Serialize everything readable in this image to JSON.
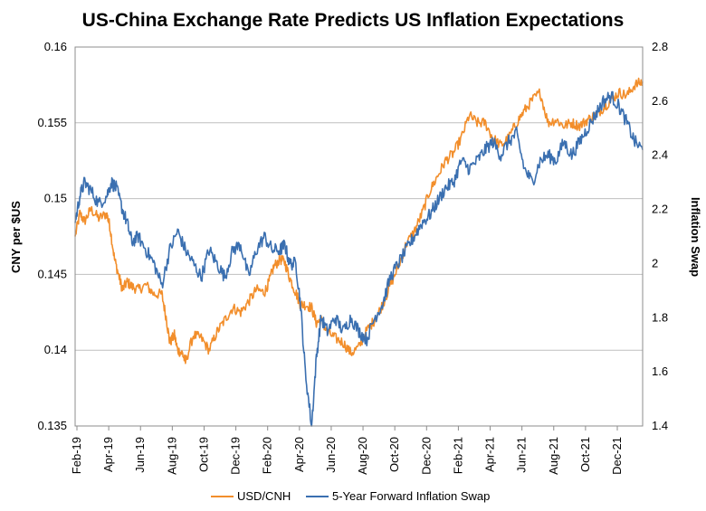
{
  "chart_data": {
    "type": "line",
    "title": "US-China Exchange Rate Predicts US Inflation Expectations",
    "ylabel": "CNY per $US",
    "y2label": "Inflation Swap",
    "ylim": [
      0.135,
      0.16
    ],
    "y2lim": [
      1.4,
      2.8
    ],
    "yticks": [
      "0.135",
      "0.14",
      "0.145",
      "0.15",
      "0.155",
      "0.16"
    ],
    "y2ticks": [
      "1.4",
      "1.6",
      "1.8",
      "2",
      "2.2",
      "2.4",
      "2.6",
      "2.8"
    ],
    "xlim": [
      0,
      36
    ],
    "grid": "horizontal",
    "categories": [
      "Feb-19",
      "Apr-19",
      "Jun-19",
      "Aug-19",
      "Oct-19",
      "Dec-19",
      "Feb-20",
      "Apr-20",
      "Jun-20",
      "Aug-20",
      "Oct-20",
      "Dec-20",
      "Feb-21",
      "Apr-21",
      "Jun-21",
      "Aug-21",
      "Oct-21",
      "Dec-21"
    ],
    "legend_position": "bottom",
    "series": [
      {
        "name": "USD/CNH",
        "axis": "left",
        "color": "#F28E2B",
        "x": [
          0,
          0.3,
          0.6,
          1.0,
          1.5,
          2.0,
          2.2,
          2.5,
          2.8,
          3.0,
          3.3,
          3.6,
          4.0,
          4.5,
          5.0,
          5.5,
          5.8,
          6.0,
          6.3,
          6.5,
          6.8,
          7.0,
          7.5,
          8.0,
          8.5,
          9.0,
          9.5,
          10.0,
          10.5,
          11.0,
          11.5,
          12.0,
          12.3,
          12.6,
          13.0,
          13.3,
          13.6,
          14.0,
          14.3,
          14.6,
          15.0,
          15.3,
          15.6,
          16.0,
          16.5,
          17.0,
          17.5,
          18.0,
          18.5,
          19.0,
          19.5,
          20.0,
          20.5,
          21.0,
          21.5,
          22.0,
          22.5,
          23.0,
          23.5,
          24.0,
          24.5,
          25.0,
          25.5,
          26.0,
          26.5,
          27.0,
          27.5,
          28.0,
          28.5,
          29.0,
          29.5,
          30.0,
          30.5,
          31.0,
          31.5,
          32.0,
          32.5,
          33.0,
          33.5,
          34.0,
          34.5,
          35.0,
          35.5,
          36.0
        ],
        "values": [
          0.1475,
          0.149,
          0.1485,
          0.1493,
          0.1487,
          0.149,
          0.1482,
          0.146,
          0.1448,
          0.144,
          0.1445,
          0.1442,
          0.144,
          0.1443,
          0.1437,
          0.1437,
          0.142,
          0.1405,
          0.141,
          0.14,
          0.1398,
          0.1392,
          0.141,
          0.1408,
          0.14,
          0.1412,
          0.142,
          0.1428,
          0.1425,
          0.1432,
          0.144,
          0.1438,
          0.1445,
          0.1455,
          0.146,
          0.1458,
          0.1448,
          0.1438,
          0.143,
          0.143,
          0.1428,
          0.1418,
          0.142,
          0.1412,
          0.1408,
          0.1405,
          0.1398,
          0.1402,
          0.1413,
          0.142,
          0.143,
          0.1443,
          0.1455,
          0.147,
          0.1478,
          0.149,
          0.1505,
          0.1515,
          0.1525,
          0.153,
          0.154,
          0.1555,
          0.155,
          0.155,
          0.154,
          0.1535,
          0.154,
          0.155,
          0.1558,
          0.1565,
          0.157,
          0.155,
          0.1552,
          0.1548,
          0.155,
          0.1548,
          0.1552,
          0.1555,
          0.156,
          0.1565,
          0.157,
          0.1568,
          0.1575,
          0.1577
        ]
      },
      {
        "name": "5-Year Forward Inflation Swap",
        "axis": "right",
        "color": "#3A6FB0",
        "x": [
          0,
          0.3,
          0.6,
          1.0,
          1.5,
          2.0,
          2.3,
          2.6,
          3.0,
          3.3,
          3.6,
          4.0,
          4.5,
          5.0,
          5.5,
          6.0,
          6.5,
          7.0,
          7.5,
          8.0,
          8.5,
          9.0,
          9.5,
          10.0,
          10.5,
          11.0,
          11.5,
          12.0,
          12.5,
          13.0,
          13.3,
          13.6,
          14.0,
          14.3,
          14.6,
          15.0,
          15.3,
          15.6,
          16.0,
          16.5,
          17.0,
          17.5,
          18.0,
          18.5,
          19.0,
          19.5,
          20.0,
          20.5,
          21.0,
          21.5,
          22.0,
          22.5,
          23.0,
          23.5,
          24.0,
          24.5,
          25.0,
          25.5,
          26.0,
          26.5,
          27.0,
          27.5,
          28.0,
          28.5,
          29.0,
          29.5,
          30.0,
          30.5,
          31.0,
          31.5,
          32.0,
          32.5,
          33.0,
          33.5,
          34.0,
          34.5,
          35.0,
          35.5,
          36.0
        ],
        "values": [
          2.15,
          2.25,
          2.3,
          2.27,
          2.22,
          2.25,
          2.3,
          2.28,
          2.2,
          2.15,
          2.08,
          2.1,
          2.05,
          2.0,
          1.92,
          2.05,
          2.12,
          2.05,
          2.0,
          1.95,
          2.05,
          2.0,
          1.95,
          2.05,
          2.07,
          1.95,
          2.05,
          2.1,
          2.05,
          2.05,
          2.07,
          2.0,
          2.0,
          1.85,
          1.6,
          1.4,
          1.65,
          1.8,
          1.75,
          1.8,
          1.75,
          1.8,
          1.75,
          1.72,
          1.8,
          1.85,
          1.95,
          2.0,
          2.05,
          2.1,
          2.15,
          2.18,
          2.23,
          2.28,
          2.3,
          2.38,
          2.35,
          2.38,
          2.42,
          2.45,
          2.4,
          2.45,
          2.48,
          2.35,
          2.3,
          2.38,
          2.4,
          2.38,
          2.45,
          2.4,
          2.45,
          2.5,
          2.55,
          2.6,
          2.62,
          2.58,
          2.52,
          2.45,
          2.42
        ]
      }
    ]
  }
}
